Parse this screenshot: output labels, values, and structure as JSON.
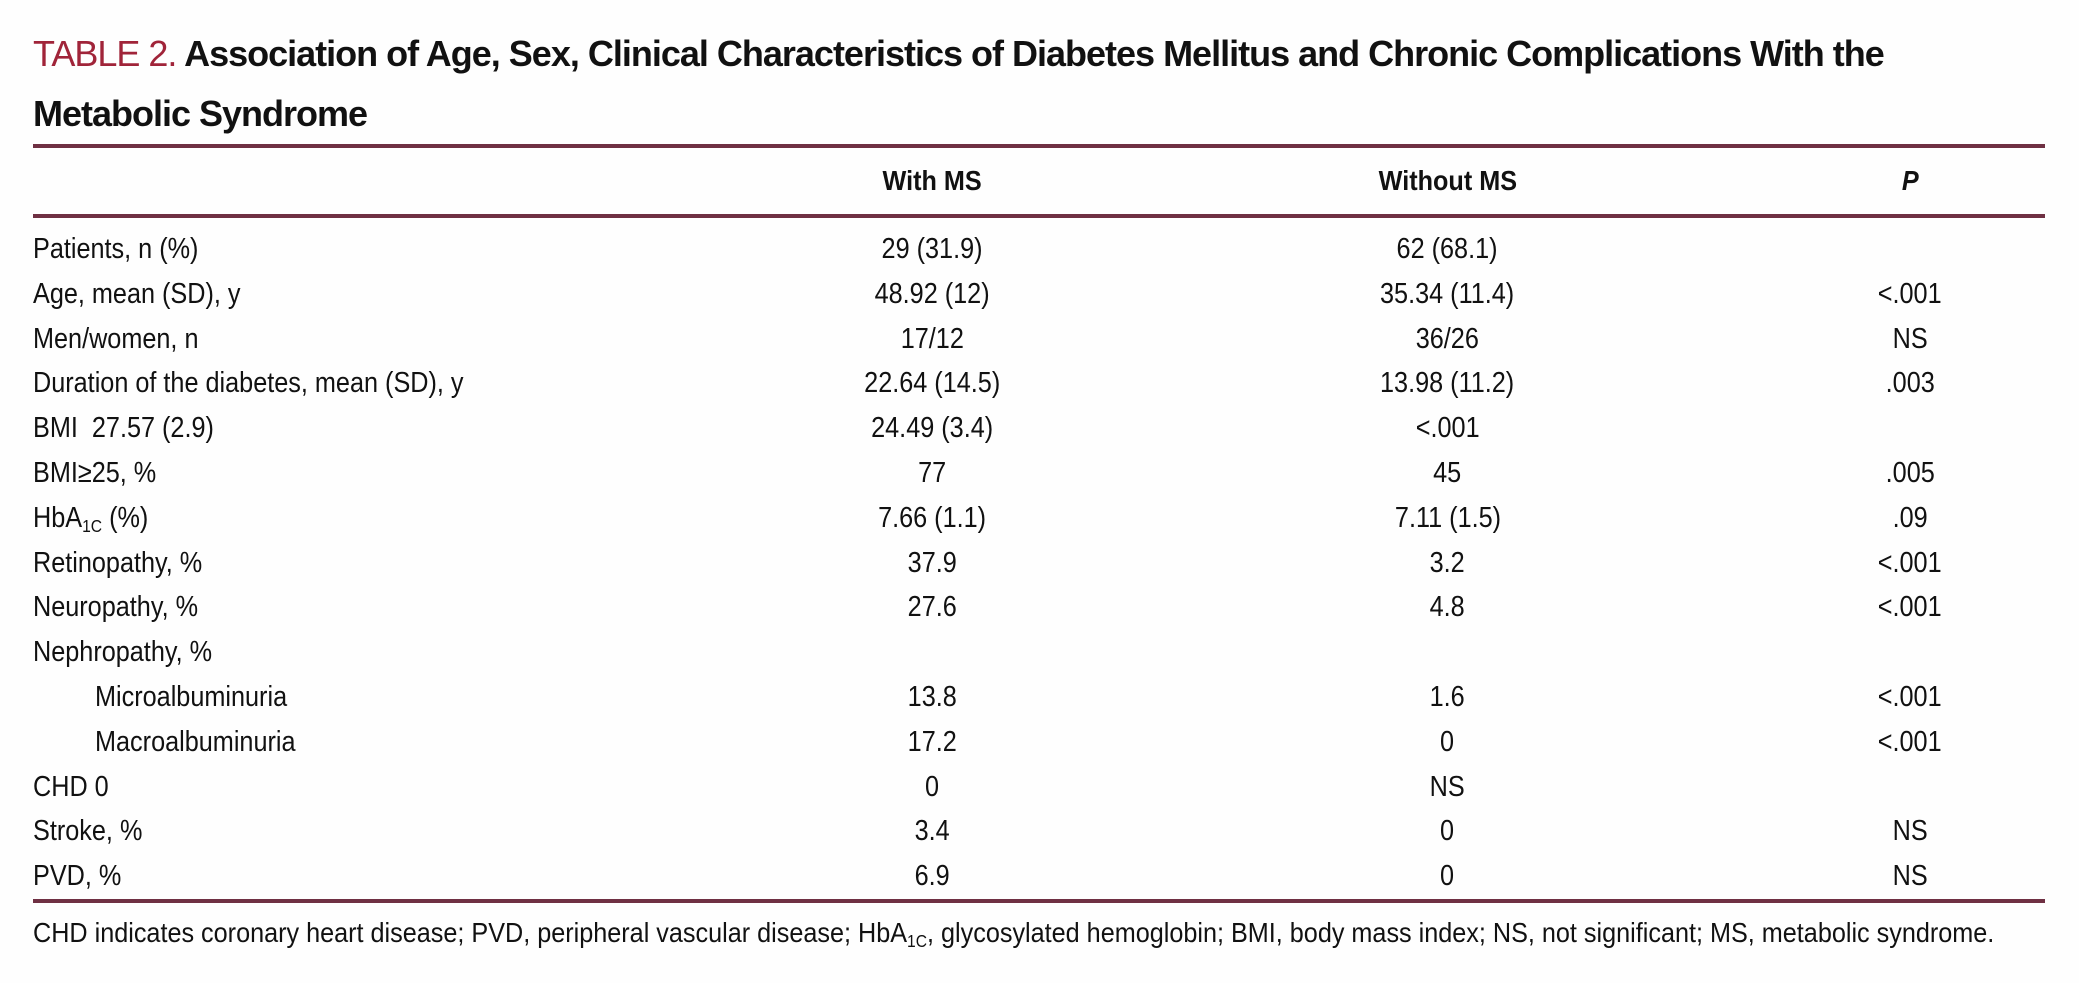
{
  "colors": {
    "table_label_red": "#a02439",
    "rule_maroon": "#6f3043"
  },
  "table": {
    "label": "TABLE 2.",
    "title": "Association of Age, Sex, Clinical Characteristics of Diabetes Mellitus and Chronic Complications With the Metabolic Syndrome",
    "columns": {
      "row_header": "",
      "with_ms": "With MS",
      "without_ms": "Without MS",
      "p": "P"
    },
    "rows": [
      {
        "label": "Patients, n (%)",
        "indent": false,
        "with_ms": "29 (31.9)",
        "without_ms": "62 (68.1)",
        "p": ""
      },
      {
        "label": "Age, mean (SD), y",
        "indent": false,
        "with_ms": "48.92 (12)",
        "without_ms": "35.34 (11.4)",
        "p": "<.001"
      },
      {
        "label": "Men/women, n",
        "indent": false,
        "with_ms": "17/12",
        "without_ms": "36/26",
        "p": "NS"
      },
      {
        "label": "Duration of the diabetes, mean (SD), y",
        "indent": false,
        "with_ms": "22.64 (14.5)",
        "without_ms": "13.98 (11.2)",
        "p": ".003"
      },
      {
        "label": "BMI  27.57 (2.9)",
        "indent": false,
        "with_ms": "24.49 (3.4)",
        "without_ms": "<.001",
        "p": ""
      },
      {
        "label": "BMI≥25, %",
        "indent": false,
        "with_ms": "77",
        "without_ms": "45",
        "p": ".005"
      },
      {
        "label": "HbA~1C~ (%)",
        "indent": false,
        "with_ms": "7.66 (1.1)",
        "without_ms": "7.11 (1.5)",
        "p": ".09"
      },
      {
        "label": "Retinopathy, %",
        "indent": false,
        "with_ms": "37.9",
        "without_ms": "3.2",
        "p": "<.001"
      },
      {
        "label": "Neuropathy, %",
        "indent": false,
        "with_ms": "27.6",
        "without_ms": "4.8",
        "p": "<.001"
      },
      {
        "label": "Nephropathy, %",
        "indent": false,
        "with_ms": "",
        "without_ms": "",
        "p": ""
      },
      {
        "label": "Microalbuminuria",
        "indent": true,
        "with_ms": "13.8",
        "without_ms": "1.6",
        "p": "<.001"
      },
      {
        "label": "Macroalbuminuria",
        "indent": true,
        "with_ms": "17.2",
        "without_ms": "0",
        "p": "<.001"
      },
      {
        "label": "CHD 0",
        "indent": false,
        "with_ms": "0",
        "without_ms": "NS",
        "p": ""
      },
      {
        "label": "Stroke, %",
        "indent": false,
        "with_ms": "3.4",
        "without_ms": "0",
        "p": "NS"
      },
      {
        "label": "PVD, %",
        "indent": false,
        "with_ms": "6.9",
        "without_ms": "0",
        "p": "NS"
      }
    ],
    "footnote": "CHD indicates coronary heart disease; PVD, peripheral vascular disease; HbA~1C~, glycosylated hemoglobin; BMI, body mass index; NS, not significant; MS, metabolic syndrome."
  }
}
